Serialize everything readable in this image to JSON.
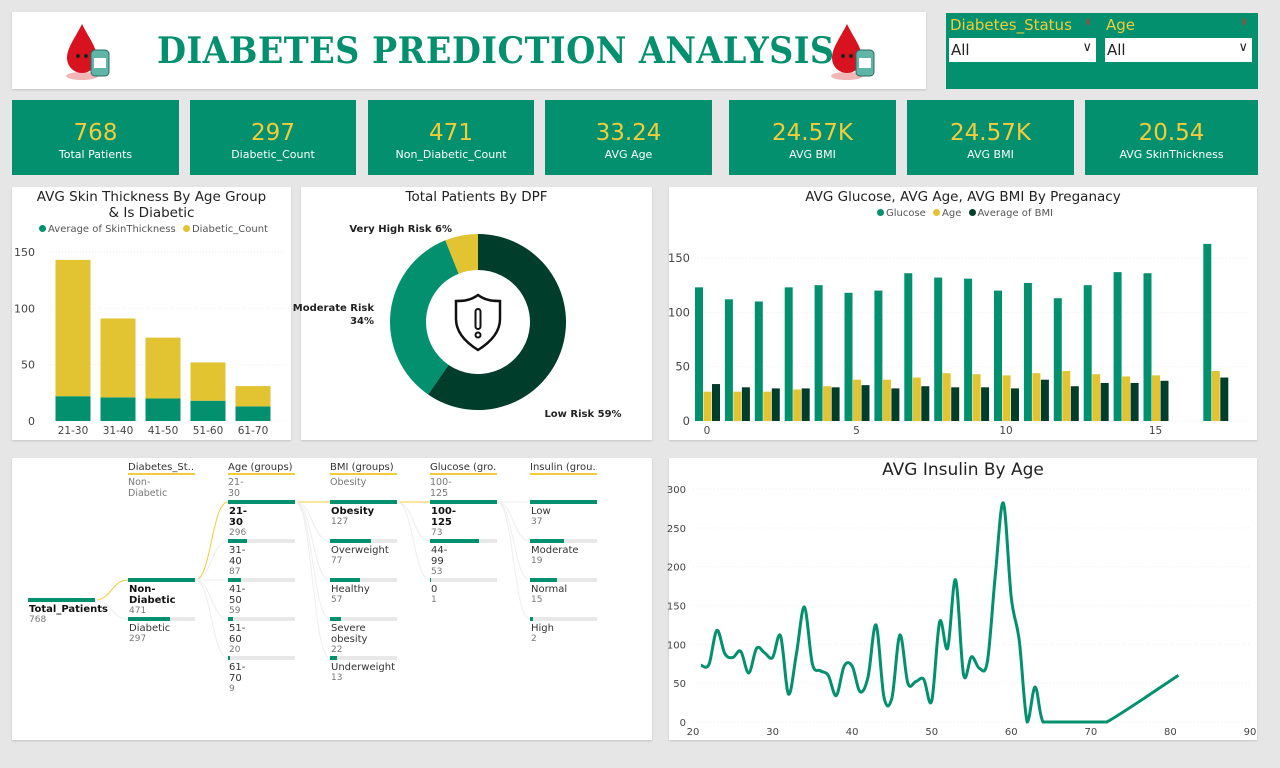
{
  "header": {
    "title": "DIABETES PREDICTION ANALYSIS"
  },
  "slicers": [
    {
      "label": "Diabetes_Status",
      "value": "All"
    },
    {
      "label": "Age",
      "value": "All"
    }
  ],
  "kpis": [
    {
      "value": "768",
      "label": "Total Patients"
    },
    {
      "value": "297",
      "label": "Diabetic_Count"
    },
    {
      "value": "471",
      "label": "Non_Diabetic_Count"
    },
    {
      "value": "33.24",
      "label": "AVG Age"
    },
    {
      "value": "24.57K",
      "label": "AVG BMI"
    },
    {
      "value": "24.57K",
      "label": "AVG BMI"
    },
    {
      "value": "20.54",
      "label": "AVG SkinThickness"
    }
  ],
  "colors": {
    "green": "#03906f",
    "yellow": "#e2c332",
    "dark": "#003d2b",
    "background": "#e6e6e6"
  },
  "chart_data": [
    {
      "type": "bar",
      "stacked": true,
      "title": "AVG Skin Thickness By Age Group & Is Diabetic",
      "categories": [
        "21-30",
        "31-40",
        "41-50",
        "51-60",
        "61-70"
      ],
      "series": [
        {
          "name": "Average of SkinThickness",
          "values": [
            22,
            21,
            20,
            18,
            13
          ],
          "color": "#03906f"
        },
        {
          "name": "Diabetic_Count",
          "values": [
            121,
            70,
            54,
            34,
            18
          ],
          "color": "#e2c332"
        }
      ],
      "ylim": [
        0,
        150
      ],
      "yticks": [
        0,
        50,
        100,
        150
      ],
      "legend": "top"
    },
    {
      "type": "pie",
      "donut": true,
      "title": "Total Patients By DPF",
      "slices": [
        {
          "label": "Low Risk",
          "value": 59,
          "display": "Low Risk 59%",
          "color": "#003d2b"
        },
        {
          "label": "Moderate Risk",
          "value": 34,
          "display": "Moderate Risk",
          "display2": "34%",
          "color": "#03906f"
        },
        {
          "label": "Very High Risk",
          "value": 6,
          "display": "Very High Risk 6%",
          "color": "#e2c332"
        }
      ],
      "center_icon": "shield-warning-icon"
    },
    {
      "type": "bar",
      "title": "AVG Glucose, AVG Age, AVG BMI By Preganacy",
      "x": [
        0,
        1,
        2,
        3,
        4,
        5,
        6,
        7,
        8,
        9,
        10,
        11,
        12,
        13,
        14,
        15,
        17
      ],
      "series": [
        {
          "name": "Glucose",
          "values": [
            123,
            112,
            110,
            123,
            125,
            118,
            120,
            136,
            132,
            131,
            120,
            127,
            113,
            125,
            137,
            136,
            163
          ],
          "color": "#03906f"
        },
        {
          "name": "Age",
          "values": [
            27,
            27,
            27,
            29,
            32,
            38,
            38,
            40,
            44,
            43,
            42,
            44,
            46,
            43,
            41,
            42,
            46
          ],
          "color": "#e2c332"
        },
        {
          "name": "Average of BMI",
          "values": [
            34,
            31,
            30,
            30,
            31,
            33,
            30,
            32,
            31,
            31,
            30,
            38,
            32,
            35,
            35,
            37,
            40
          ],
          "color": "#003d2b"
        }
      ],
      "ylim": [
        0,
        170
      ],
      "yticks": [
        0,
        50,
        100,
        150
      ],
      "xticks": [
        0,
        5,
        10,
        15
      ],
      "legend": "top"
    },
    {
      "type": "line",
      "title": "AVG Insulin By Age",
      "x": [
        21,
        22,
        23,
        24,
        25,
        26,
        27,
        28,
        29,
        30,
        31,
        32,
        33,
        34,
        35,
        36,
        37,
        38,
        39,
        40,
        41,
        42,
        43,
        44,
        45,
        46,
        47,
        48,
        49,
        50,
        51,
        52,
        53,
        54,
        55,
        56,
        57,
        58,
        59,
        60,
        61,
        62,
        63,
        64,
        66,
        68,
        70,
        72,
        81
      ],
      "values": [
        73,
        74,
        118,
        88,
        83,
        91,
        63,
        95,
        89,
        83,
        111,
        36,
        88,
        148,
        75,
        66,
        60,
        34,
        72,
        72,
        39,
        58,
        125,
        32,
        31,
        112,
        50,
        52,
        55,
        27,
        129,
        95,
        183,
        61,
        84,
        69,
        78,
        190,
        282,
        160,
        105,
        0,
        45,
        0,
        0,
        0,
        0,
        0,
        60
      ],
      "color": "#03906f",
      "xlim": [
        20,
        90
      ],
      "ylim": [
        0,
        300
      ],
      "xticks": [
        20,
        30,
        40,
        50,
        60,
        70,
        80,
        90
      ],
      "yticks": [
        0,
        50,
        100,
        150,
        200,
        250,
        300
      ]
    }
  ],
  "decomposition_tree": {
    "root": {
      "label": "Total_Patients",
      "value": "768"
    },
    "levels": [
      {
        "header": "Diabetes_St...",
        "selected": "Non-Diabetic",
        "items": [
          {
            "label": "Non-Diabetic",
            "value": "471",
            "fill": 1
          },
          {
            "label": "Diabetic",
            "value": "297",
            "fill": 0.63
          }
        ]
      },
      {
        "header": "Age (groups)",
        "selected": "21-30",
        "items": [
          {
            "label": "21-30",
            "value": "296",
            "fill": 1
          },
          {
            "label": "31-40",
            "value": "87",
            "fill": 0.29
          },
          {
            "label": "41-50",
            "value": "59",
            "fill": 0.2
          },
          {
            "label": "51-60",
            "value": "20",
            "fill": 0.07
          },
          {
            "label": "61-70",
            "value": "9",
            "fill": 0.03
          }
        ]
      },
      {
        "header": "BMI (groups)",
        "selected": "Obesity",
        "items": [
          {
            "label": "Obesity",
            "value": "127",
            "fill": 1
          },
          {
            "label": "Overweight",
            "value": "77",
            "fill": 0.61
          },
          {
            "label": "Healthy",
            "value": "57",
            "fill": 0.45
          },
          {
            "label": "Severe obesity",
            "value": "22",
            "fill": 0.17
          },
          {
            "label": "Underweight",
            "value": "13",
            "fill": 0.1
          }
        ]
      },
      {
        "header": "Glucose (gro...",
        "selected": "100-125",
        "items": [
          {
            "label": "100-125",
            "value": "73",
            "fill": 1
          },
          {
            "label": "44-99",
            "value": "53",
            "fill": 0.73
          },
          {
            "label": "0",
            "value": "1",
            "fill": 0.02
          }
        ]
      },
      {
        "header": "Insulin (grou...",
        "selected": "",
        "items": [
          {
            "label": "Low",
            "value": "37",
            "fill": 1
          },
          {
            "label": "Moderate",
            "value": "19",
            "fill": 0.51
          },
          {
            "label": "Normal",
            "value": "15",
            "fill": 0.41
          },
          {
            "label": "High",
            "value": "2",
            "fill": 0.05
          }
        ]
      }
    ]
  }
}
